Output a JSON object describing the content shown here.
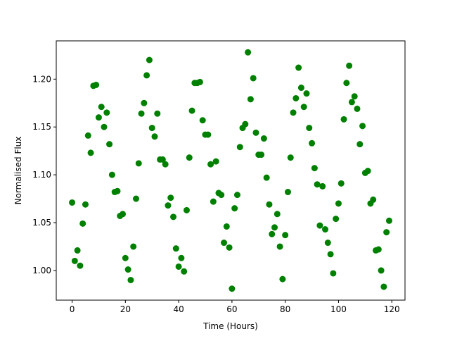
{
  "chart_data": {
    "type": "scatter",
    "xlabel": "Time (Hours)",
    "ylabel": "Normalised Flux",
    "color": "#008000",
    "x": [
      0,
      1,
      2,
      3,
      4,
      5,
      6,
      7,
      8,
      9,
      10,
      11,
      12,
      13,
      14,
      15,
      16,
      17,
      18,
      19,
      20,
      21,
      22,
      23,
      24,
      25,
      26,
      27,
      28,
      29,
      30,
      31,
      32,
      33,
      34,
      35,
      36,
      37,
      38,
      39,
      40,
      41,
      42,
      43,
      44,
      45,
      46,
      47,
      48,
      49,
      50,
      51,
      52,
      53,
      54,
      55,
      56,
      57,
      58,
      59,
      60,
      61,
      62,
      63,
      64,
      65,
      66,
      67,
      68,
      69,
      70,
      71,
      72,
      73,
      74,
      75,
      76,
      77,
      78,
      79,
      80,
      81,
      82,
      83,
      84,
      85,
      86,
      87,
      88,
      89,
      90,
      91,
      92,
      93,
      94,
      95,
      96,
      97,
      98,
      99,
      100,
      101,
      102,
      103,
      104,
      105,
      106,
      107,
      108,
      109,
      110,
      111,
      112,
      113,
      114,
      115,
      116,
      117,
      118,
      119
    ],
    "values": [
      1.071,
      1.01,
      1.021,
      1.005,
      1.049,
      1.069,
      1.141,
      1.123,
      1.193,
      1.194,
      1.16,
      1.171,
      1.15,
      1.165,
      1.132,
      1.1,
      1.082,
      1.083,
      1.057,
      1.059,
      1.013,
      1.001,
      0.99,
      1.025,
      1.075,
      1.112,
      1.164,
      1.175,
      1.204,
      1.22,
      1.149,
      1.14,
      1.164,
      1.116,
      1.116,
      1.111,
      1.068,
      1.076,
      1.056,
      1.023,
      1.004,
      1.013,
      0.999,
      1.063,
      1.118,
      1.167,
      1.196,
      1.196,
      1.197,
      1.157,
      1.142,
      1.142,
      1.111,
      1.072,
      1.114,
      1.081,
      1.079,
      1.029,
      1.046,
      1.024,
      0.981,
      1.065,
      1.079,
      1.129,
      1.149,
      1.153,
      1.228,
      1.179,
      1.201,
      1.144,
      1.121,
      1.121,
      1.138,
      1.097,
      1.069,
      1.038,
      1.045,
      1.059,
      1.025,
      0.991,
      1.037,
      1.082,
      1.118,
      1.165,
      1.18,
      1.212,
      1.191,
      1.171,
      1.185,
      1.149,
      1.133,
      1.107,
      1.09,
      1.047,
      1.088,
      1.043,
      1.029,
      1.017,
      0.997,
      1.054,
      1.07,
      1.091,
      1.158,
      1.196,
      1.214,
      1.176,
      1.182,
      1.169,
      1.132,
      1.151,
      1.102,
      1.104,
      1.07,
      1.074,
      1.021,
      1.022,
      1.0,
      0.983,
      1.04,
      1.052
    ],
    "xlim": [
      -5.95,
      124.95
    ],
    "xticks": [
      0,
      20,
      40,
      60,
      80,
      100,
      120
    ],
    "ylim": [
      0.969,
      1.24
    ],
    "yticks": [
      {
        "value": 1.0,
        "label": "1.00"
      },
      {
        "value": 1.05,
        "label": "1.05"
      },
      {
        "value": 1.1,
        "label": "1.10"
      },
      {
        "value": 1.15,
        "label": "1.15"
      },
      {
        "value": 1.2,
        "label": "1.20"
      }
    ]
  }
}
